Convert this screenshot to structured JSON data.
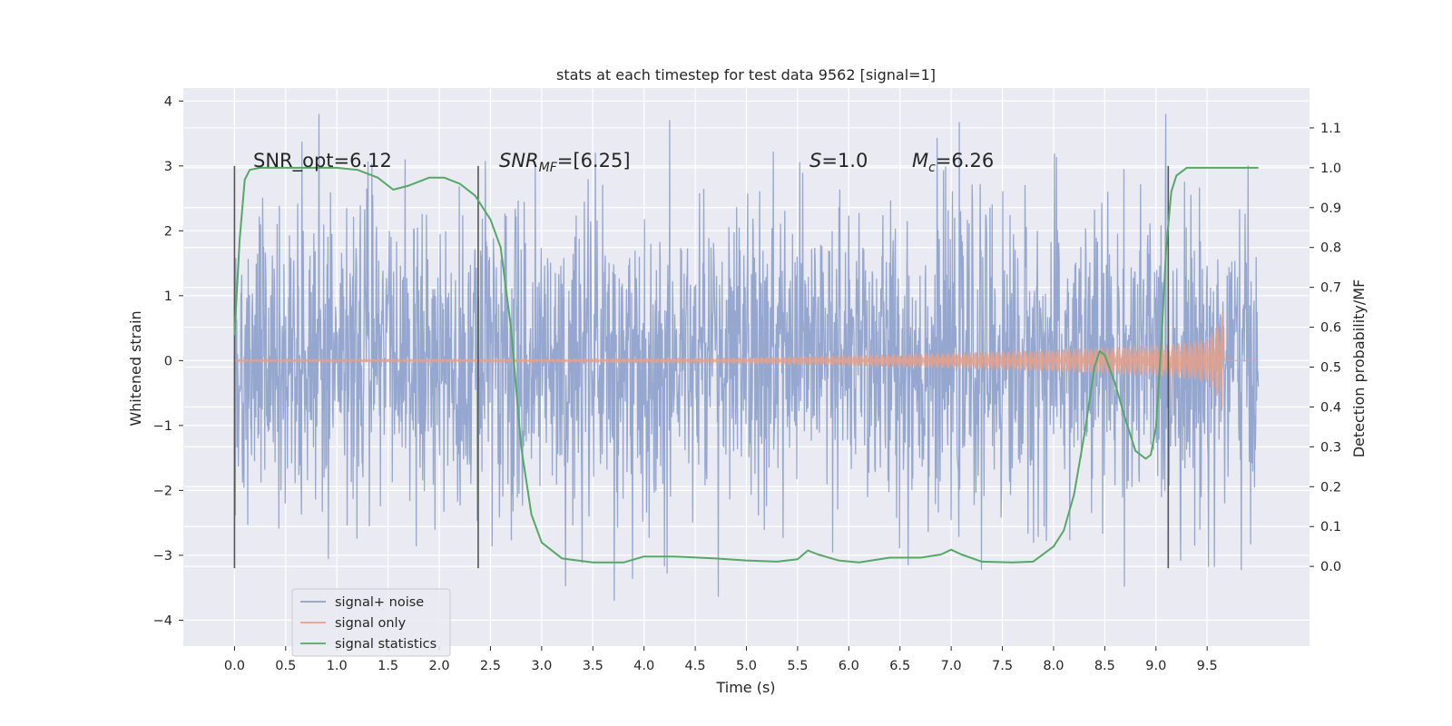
{
  "chart_data": {
    "type": "line",
    "title": "stats at each timestep for test data 9562 [signal=1]",
    "xlabel": "Time (s)",
    "ylabel": "Whitened strain",
    "ylabel_right": "Detection probability/MF",
    "xlim": [
      -0.5,
      10.5
    ],
    "ylim": [
      -4.4,
      4.2
    ],
    "ylim_right": [
      -0.2,
      1.2
    ],
    "x_ticks": [
      0.0,
      0.5,
      1.0,
      1.5,
      2.0,
      2.5,
      3.0,
      3.5,
      4.0,
      4.5,
      5.0,
      5.5,
      6.0,
      6.5,
      7.0,
      7.5,
      8.0,
      8.5,
      9.0,
      9.5
    ],
    "x_tick_labels": [
      "0.0",
      "0.5",
      "1.0",
      "1.5",
      "2.0",
      "2.5",
      "3.0",
      "3.5",
      "4.0",
      "4.5",
      "5.0",
      "5.5",
      "6.0",
      "6.5",
      "7.0",
      "7.5",
      "8.0",
      "8.5",
      "9.0",
      "9.5"
    ],
    "y_ticks": [
      -4,
      -3,
      -2,
      -1,
      0,
      1,
      2,
      3,
      4
    ],
    "y_tick_labels": [
      "−4",
      "−3",
      "−2",
      "−1",
      "0",
      "1",
      "2",
      "3",
      "4"
    ],
    "y_ticks_right": [
      0.0,
      0.1,
      0.2,
      0.3,
      0.4,
      0.5,
      0.6,
      0.7,
      0.8,
      0.9,
      1.0,
      1.1
    ],
    "y_tick_labels_right": [
      "0.0",
      "0.1",
      "0.2",
      "0.3",
      "0.4",
      "0.5",
      "0.6",
      "0.7",
      "0.8",
      "0.9",
      "1.0",
      "1.1"
    ],
    "grid": true,
    "legend_position": "lower-left",
    "colors": {
      "noise": "#8da0cb",
      "signal": "#e5a08a",
      "stats": "#55a868",
      "vline": "#555555",
      "axes_bg": "#eaeaf2",
      "grid": "#ffffff"
    },
    "series": [
      {
        "name": "signal+ noise",
        "axis": "left",
        "x_range": [
          0.0,
          10.0
        ],
        "typical_amplitude": 1.6,
        "peak_range": [
          -4.0,
          3.8
        ]
      },
      {
        "name": "signal only",
        "axis": "left",
        "x_range": [
          0.0,
          9.65
        ],
        "envelope_x": [
          0.0,
          3.0,
          5.0,
          6.0,
          7.0,
          8.0,
          8.5,
          9.0,
          9.3,
          9.5,
          9.6,
          9.65
        ],
        "envelope": [
          0.02,
          0.03,
          0.05,
          0.08,
          0.12,
          0.17,
          0.2,
          0.24,
          0.28,
          0.34,
          0.55,
          0.75
        ]
      },
      {
        "name": "signal statistics",
        "axis": "right",
        "x": [
          0.0,
          0.05,
          0.1,
          0.15,
          0.25,
          0.5,
          0.8,
          1.0,
          1.2,
          1.4,
          1.55,
          1.7,
          1.9,
          2.05,
          2.2,
          2.35,
          2.5,
          2.6,
          2.7,
          2.8,
          2.9,
          3.0,
          3.2,
          3.5,
          3.8,
          4.0,
          4.3,
          4.7,
          5.0,
          5.3,
          5.5,
          5.6,
          5.7,
          5.9,
          6.1,
          6.4,
          6.7,
          6.9,
          7.0,
          7.1,
          7.3,
          7.6,
          7.8,
          8.0,
          8.1,
          8.2,
          8.3,
          8.4,
          8.45,
          8.5,
          8.6,
          8.7,
          8.8,
          8.9,
          8.95,
          9.0,
          9.05,
          9.1,
          9.15,
          9.2,
          9.3,
          9.5,
          9.7,
          9.9,
          10.0
        ],
        "y": [
          0.58,
          0.82,
          0.97,
          0.995,
          1.0,
          1.0,
          1.0,
          1.0,
          0.995,
          0.975,
          0.945,
          0.955,
          0.975,
          0.975,
          0.96,
          0.93,
          0.87,
          0.8,
          0.6,
          0.3,
          0.13,
          0.06,
          0.02,
          0.01,
          0.01,
          0.025,
          0.025,
          0.02,
          0.015,
          0.012,
          0.018,
          0.04,
          0.03,
          0.015,
          0.01,
          0.022,
          0.022,
          0.03,
          0.042,
          0.03,
          0.012,
          0.01,
          0.012,
          0.05,
          0.09,
          0.18,
          0.33,
          0.5,
          0.54,
          0.53,
          0.46,
          0.37,
          0.29,
          0.27,
          0.28,
          0.35,
          0.55,
          0.8,
          0.94,
          0.98,
          1.0,
          1.0,
          1.0,
          1.0,
          1.0
        ]
      }
    ],
    "vertical_lines": [
      0.0,
      2.38,
      9.12
    ],
    "vertical_line_range": [
      -3.2,
      3.0
    ],
    "annotations": {
      "snr_opt": "SNR_opt=6.12",
      "snr_mf_base": "SNR",
      "snr_mf_sub": "MF",
      "snr_mf_value": "=[6.25]",
      "s_label": "S",
      "s_value": "=1.0",
      "mc_label": "M",
      "mc_sub": "c",
      "mc_value": "=6.26"
    },
    "legend": [
      "signal+ noise",
      "signal only",
      "signal statistics"
    ]
  }
}
